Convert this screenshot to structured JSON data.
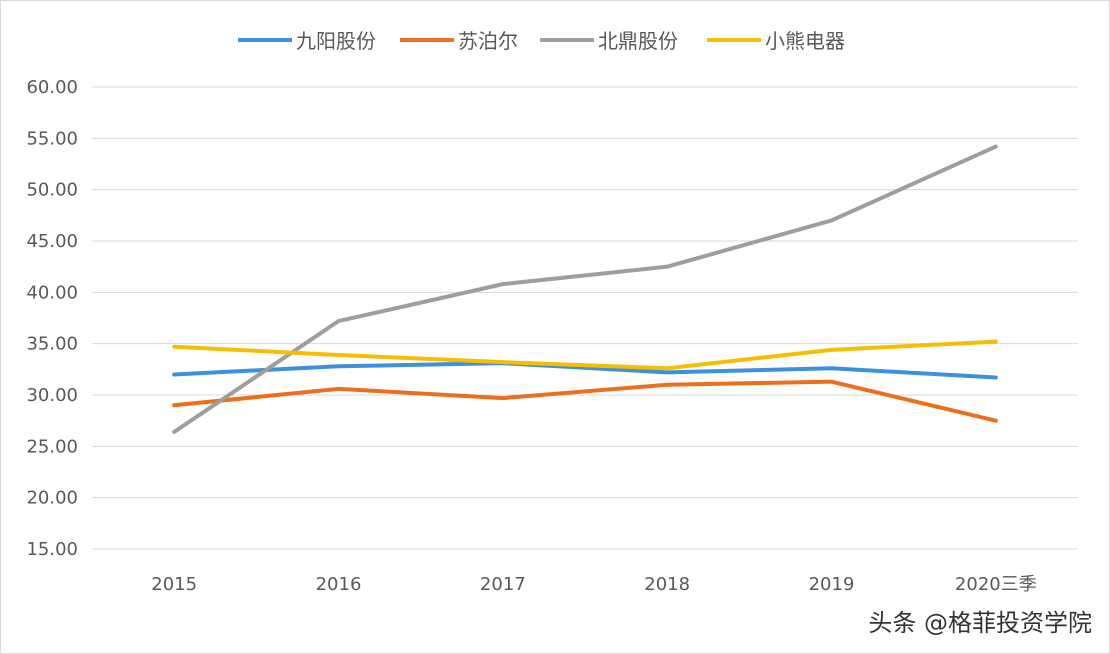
{
  "chart_data": {
    "type": "line",
    "categories": [
      "2015",
      "2016",
      "2017",
      "2018",
      "2019",
      "2020三季"
    ],
    "ylim": [
      15,
      60
    ],
    "yticks": [
      "15.00",
      "20.00",
      "25.00",
      "30.00",
      "35.00",
      "40.00",
      "45.00",
      "50.00",
      "55.00",
      "60.00"
    ],
    "grid": true,
    "legend_position": "top",
    "series": [
      {
        "name": "九阳股份",
        "color": "#3e8fdc",
        "values": [
          32.0,
          32.8,
          33.1,
          32.2,
          32.6,
          31.7
        ]
      },
      {
        "name": "苏泊尔",
        "color": "#ee6f1b",
        "values": [
          29.0,
          30.6,
          29.7,
          31.0,
          31.3,
          27.5
        ]
      },
      {
        "name": "北鼎股份",
        "color": "#9e9e9e",
        "values": [
          26.4,
          37.2,
          40.8,
          42.5,
          47.0,
          54.2
        ]
      },
      {
        "name": "小熊电器",
        "color": "#f6be00",
        "values": [
          34.7,
          33.9,
          33.2,
          32.6,
          34.4,
          35.2
        ]
      }
    ]
  },
  "watermark": "头条 @格菲投资学院"
}
